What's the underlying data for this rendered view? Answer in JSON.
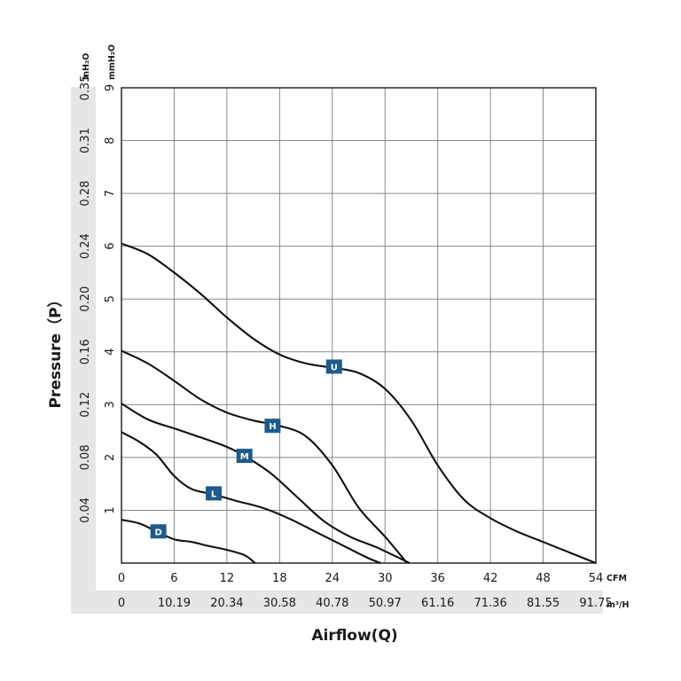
{
  "chart_data": {
    "type": "line",
    "xlabel": "Airflow(Q)",
    "ylabel": "Pressure（P）",
    "x_unit_primary": "CFM",
    "x_unit_secondary": "m³/H",
    "y_unit_primary": "mmH₂O",
    "y_unit_secondary": "inH₂O",
    "xlim": [
      0,
      54
    ],
    "ylim": [
      0,
      9
    ],
    "x_ticks": [
      "0",
      "6",
      "12",
      "18",
      "24",
      "30",
      "36",
      "42",
      "48",
      "54"
    ],
    "x_ticks_secondary": [
      "0",
      "10.19",
      "20.34",
      "30.58",
      "40.78",
      "50.97",
      "61.16",
      "71.36",
      "81.55",
      "91.75"
    ],
    "y_ticks": [
      "1",
      "2",
      "3",
      "4",
      "5",
      "6",
      "7",
      "8",
      "9"
    ],
    "y_ticks_secondary": [
      "0.04",
      "0.08",
      "0.12",
      "0.16",
      "0.20",
      "0.24",
      "0.28",
      "0.31",
      "0.35"
    ],
    "grid": true,
    "series": [
      {
        "name": "U",
        "x": [
          0,
          3,
          6,
          9,
          12,
          15,
          18,
          21,
          24,
          27,
          30,
          33,
          36,
          39,
          42,
          45,
          48,
          51,
          54
        ],
        "y": [
          6.05,
          5.85,
          5.5,
          5.1,
          4.65,
          4.25,
          3.95,
          3.78,
          3.7,
          3.6,
          3.3,
          2.7,
          1.85,
          1.2,
          0.85,
          0.6,
          0.4,
          0.2,
          0.0
        ],
        "label_at": [
          24.2,
          3.72
        ]
      },
      {
        "name": "H",
        "x": [
          0,
          3,
          6,
          9,
          12,
          15,
          18,
          21,
          24,
          27,
          30,
          32.5
        ],
        "y": [
          4.02,
          3.78,
          3.45,
          3.1,
          2.85,
          2.7,
          2.6,
          2.4,
          1.85,
          1.05,
          0.5,
          0.0
        ],
        "label_at": [
          17.2,
          2.6
        ]
      },
      {
        "name": "M",
        "x": [
          0,
          3,
          6,
          9,
          12,
          14,
          17,
          20,
          23,
          26,
          29,
          32.8
        ],
        "y": [
          3.02,
          2.72,
          2.55,
          2.38,
          2.2,
          2.03,
          1.7,
          1.25,
          0.8,
          0.5,
          0.3,
          0.0
        ],
        "label_at": [
          14.0,
          2.03
        ]
      },
      {
        "name": "L",
        "x": [
          0,
          2,
          4,
          6,
          8,
          10.5,
          13,
          16,
          19,
          22,
          25,
          28,
          29.5
        ],
        "y": [
          2.48,
          2.3,
          2.05,
          1.65,
          1.4,
          1.3,
          1.18,
          1.05,
          0.85,
          0.6,
          0.35,
          0.1,
          0.0
        ],
        "label_at": [
          10.5,
          1.32
        ]
      },
      {
        "name": "D",
        "x": [
          0,
          2,
          4,
          6,
          8,
          10,
          12,
          14,
          15.2
        ],
        "y": [
          0.82,
          0.75,
          0.6,
          0.45,
          0.4,
          0.32,
          0.25,
          0.15,
          0.0
        ],
        "label_at": [
          4.2,
          0.6
        ]
      }
    ]
  },
  "colors": {
    "label_box": "#1e5b8c",
    "axis_band": "#e6e6e6"
  }
}
